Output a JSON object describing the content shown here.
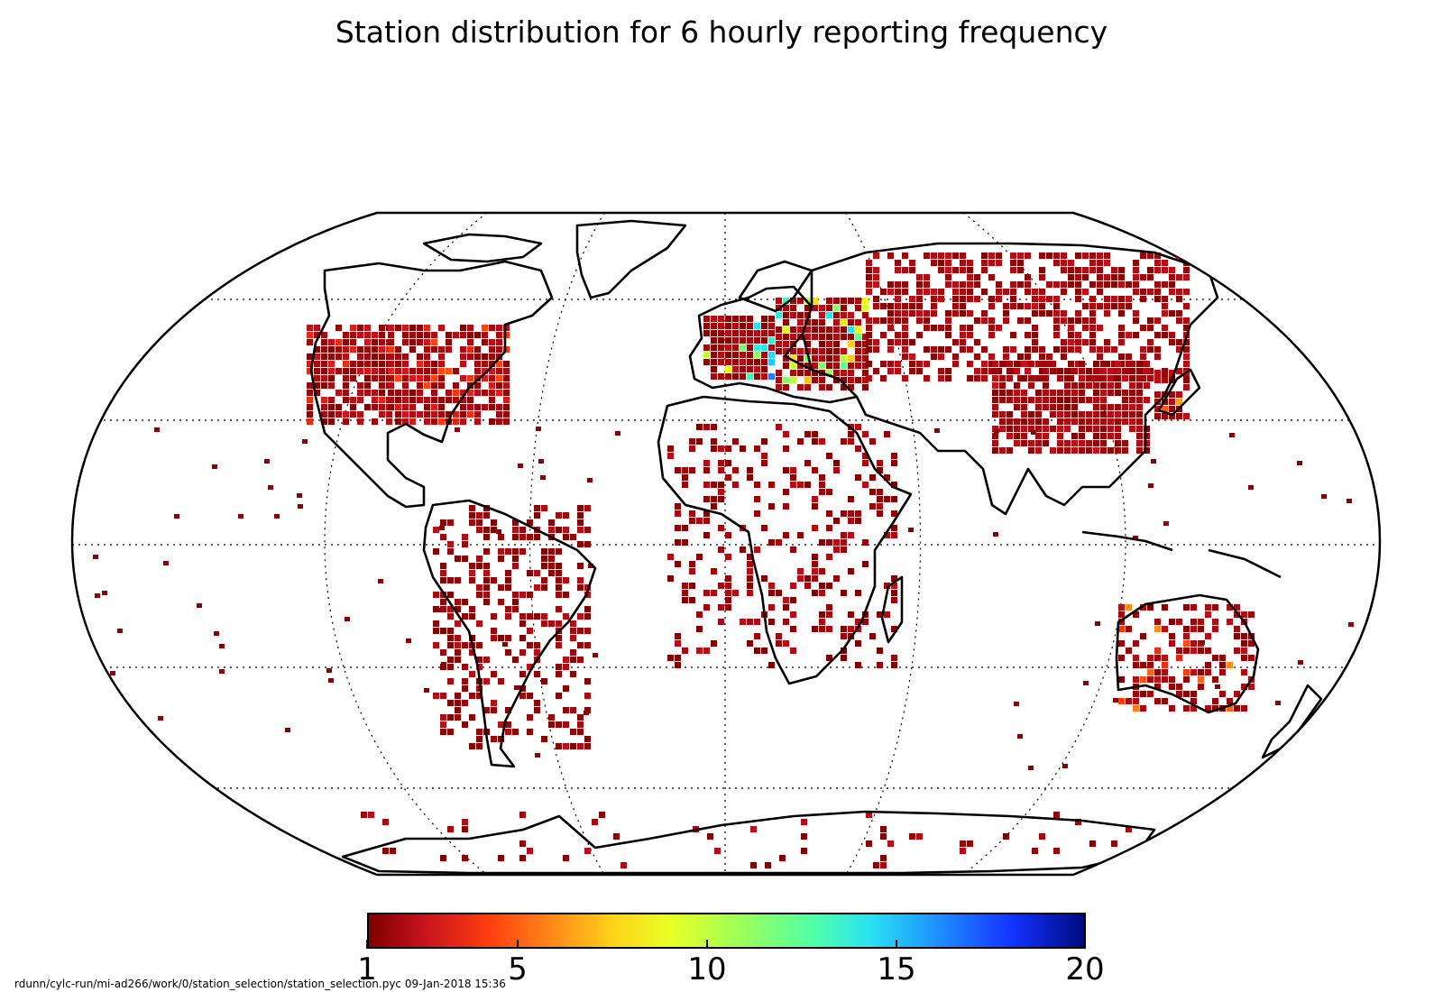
{
  "title": "Station distribution for 6 hourly reporting frequency",
  "footer": "rdunn/cylc-run/mi-ad266/work/0/station_selection/station_selection.pyc   09-Jan-2018 15:36",
  "map": {
    "projection": "Robinson",
    "graticule": "dotted",
    "coastlines_color": "#000000",
    "ocean_color": "#ffffff"
  },
  "colorbar": {
    "colormap": "jet (reversed, dark red to dark blue)",
    "min": 1,
    "max": 20,
    "ticks": [
      "1",
      "5",
      "10",
      "15",
      "20"
    ]
  },
  "station_density_regions": [
    {
      "region": "Western Europe",
      "level": 14
    },
    {
      "region": "Central Europe",
      "level": 12
    },
    {
      "region": "Eastern United States",
      "level": 4
    },
    {
      "region": "Western United States",
      "level": 3
    },
    {
      "region": "Russia",
      "level": 2
    },
    {
      "region": "China",
      "level": 2
    },
    {
      "region": "Japan",
      "level": 6
    },
    {
      "region": "Southeast Australia",
      "level": 5
    },
    {
      "region": "South America",
      "level": 1
    },
    {
      "region": "Africa",
      "level": 1
    },
    {
      "region": "Antarctica",
      "level": 1
    }
  ]
}
